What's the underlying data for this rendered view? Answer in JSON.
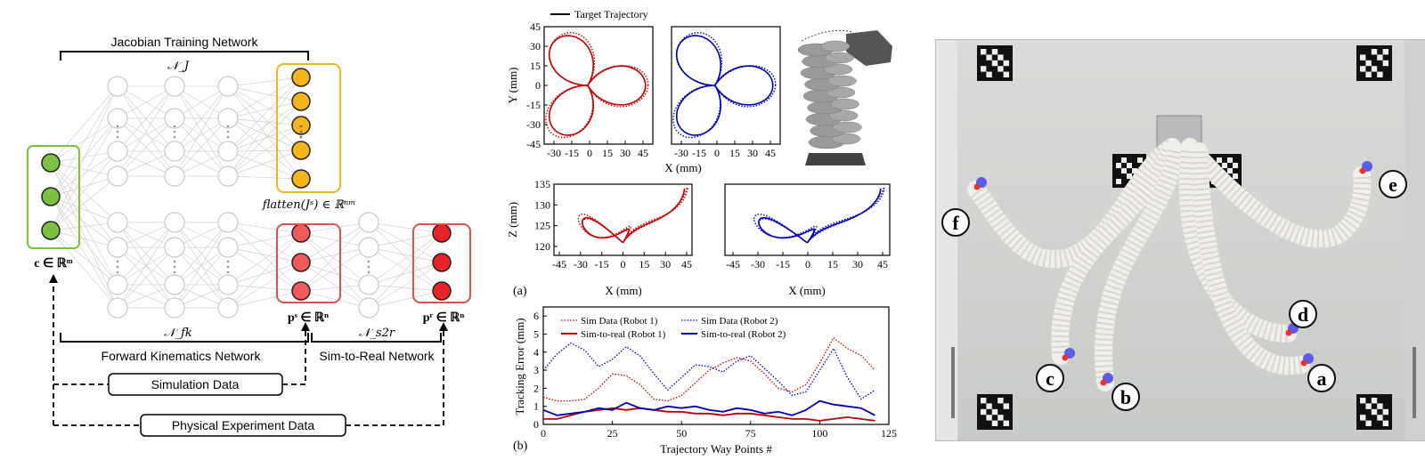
{
  "network_diagram": {
    "jacobian_title": "Jacobian Training Network",
    "nj_label": "𝒩_J",
    "input_label": "c ∈ ℝᵐ",
    "flatten_label": "flatten(Jˢ) ∈ ℝⁿᵐ",
    "ps_label": "pˢ ∈ ℝⁿ",
    "pr_label": "pʳ ∈ ℝⁿ",
    "nfk_label": "𝒩_fk",
    "ns2r_label": "𝒩_s2r",
    "fk_title": "Forward Kinematics Network",
    "s2r_title": "Sim-to-Real Network",
    "sim_data_label": "Simulation Data",
    "phys_data_label": "Physical Experiment Data",
    "colors": {
      "green": "#7cc242",
      "yellow": "#f4b41a",
      "red": "#e8242a",
      "gray": "#cccccc"
    }
  },
  "chart_data": [
    {
      "type": "line",
      "panel": "top-left",
      "xlabel": "X (mm)",
      "ylabel": "Y (mm)",
      "xticks": [
        "-30",
        "-15",
        "0",
        "15",
        "30",
        "45"
      ],
      "yticks": [
        "45",
        "30",
        "15",
        "0",
        "-15",
        "-30",
        "-45"
      ],
      "xlim": [
        -30,
        45
      ],
      "ylim": [
        -45,
        45
      ],
      "legend": "Target Trajectory",
      "series": [
        {
          "style": "solid",
          "color": "#c00000"
        },
        {
          "style": "dotted",
          "color": "#c00000"
        }
      ]
    },
    {
      "type": "line",
      "panel": "top-right",
      "xticks": [
        "-30",
        "-15",
        "0",
        "15",
        "30",
        "45"
      ],
      "xlim": [
        -30,
        45
      ],
      "ylim": [
        -45,
        45
      ],
      "series": [
        {
          "style": "solid",
          "color": "#0000b0"
        },
        {
          "style": "dotted",
          "color": "#0000b0"
        }
      ]
    },
    {
      "type": "line",
      "panel": "middle-left",
      "xlabel": "X (mm)",
      "ylabel": "Z (mm)",
      "xticks": [
        "-45",
        "-30",
        "-15",
        "0",
        "15",
        "30",
        "45"
      ],
      "yticks": [
        "135",
        "130",
        "125",
        "120"
      ],
      "xlim": [
        -45,
        45
      ],
      "ylim": [
        118,
        135
      ],
      "panel_label": "(a)"
    },
    {
      "type": "line",
      "panel": "middle-right",
      "xlabel": "X (mm)",
      "xticks": [
        "-45",
        "-30",
        "-15",
        "0",
        "15",
        "30",
        "45"
      ],
      "xlim": [
        -45,
        45
      ],
      "ylim": [
        118,
        135
      ]
    },
    {
      "type": "line",
      "panel": "bottom",
      "xlabel": "Trajectory Way Points #",
      "ylabel": "Tracking Error (mm)",
      "xticks": [
        "0",
        "25",
        "50",
        "75",
        "100",
        "125"
      ],
      "yticks": [
        "0",
        "1",
        "2",
        "3",
        "4",
        "5",
        "6"
      ],
      "xlim": [
        0,
        125
      ],
      "ylim": [
        0,
        6.5
      ],
      "panel_label": "(b)",
      "x": [
        0,
        5,
        10,
        15,
        20,
        25,
        30,
        35,
        40,
        45,
        50,
        55,
        60,
        65,
        70,
        75,
        80,
        85,
        90,
        95,
        100,
        105,
        110,
        115,
        120
      ],
      "series": [
        {
          "name": "Sim Data (Robot 1)",
          "style": "dotted",
          "color": "#c00000",
          "values": [
            1.5,
            1.3,
            1.3,
            1.4,
            2.0,
            2.8,
            2.7,
            2.2,
            1.4,
            1.3,
            1.6,
            2.3,
            3.0,
            3.4,
            3.7,
            3.5,
            2.8,
            2.0,
            1.8,
            2.2,
            3.4,
            4.8,
            4.2,
            3.8,
            3.0
          ]
        },
        {
          "name": "Sim Data (Robot 2)",
          "style": "dotted",
          "color": "#0000b0",
          "values": [
            3.0,
            3.9,
            4.5,
            4.1,
            3.2,
            3.6,
            4.3,
            3.8,
            2.8,
            1.9,
            2.6,
            3.3,
            3.2,
            2.9,
            3.5,
            3.8,
            3.1,
            2.4,
            1.6,
            1.8,
            3.0,
            4.2,
            2.6,
            1.4,
            1.9
          ]
        },
        {
          "name": "Sim-to-real (Robot 1)",
          "style": "solid",
          "color": "#c00000",
          "values": [
            0.3,
            0.3,
            0.5,
            0.7,
            0.8,
            0.9,
            0.8,
            0.9,
            0.8,
            0.7,
            0.7,
            0.6,
            0.6,
            0.5,
            0.6,
            0.6,
            0.5,
            0.4,
            0.3,
            0.3,
            0.2,
            0.3,
            0.4,
            0.3,
            0.2
          ]
        },
        {
          "name": "Sim-to-real (Robot 2)",
          "style": "solid",
          "color": "#0000b0",
          "values": [
            0.8,
            0.5,
            0.6,
            0.7,
            0.9,
            0.8,
            1.2,
            0.9,
            0.8,
            1.0,
            0.9,
            1.0,
            0.8,
            0.7,
            0.9,
            0.8,
            0.6,
            0.7,
            0.5,
            0.8,
            1.3,
            1.1,
            1.0,
            0.9,
            0.5
          ]
        }
      ]
    }
  ],
  "photo": {
    "labels": [
      "f",
      "e",
      "c",
      "b",
      "d",
      "a"
    ]
  }
}
